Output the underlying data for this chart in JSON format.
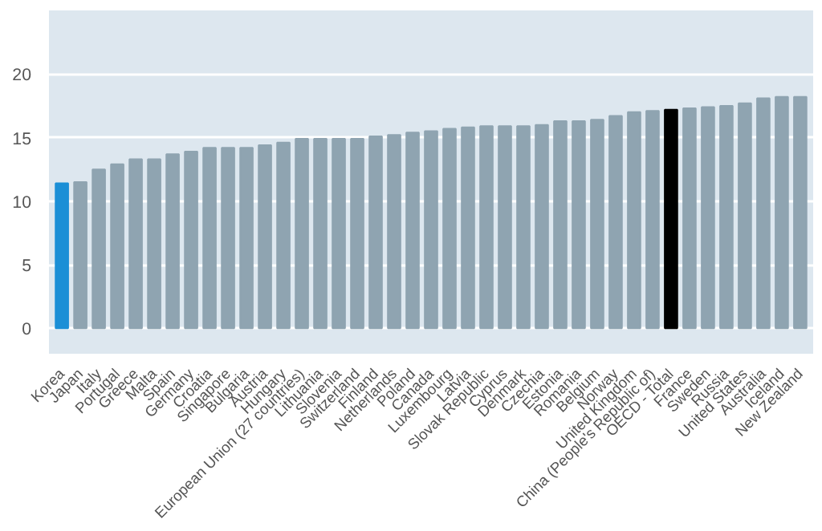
{
  "chart_data": {
    "type": "bar",
    "categories": [
      "Korea",
      "Japan",
      "Italy",
      "Portugal",
      "Greece",
      "Malta",
      "Spain",
      "Germany",
      "Croatia",
      "Singapore",
      "Bulgaria",
      "Austria",
      "Hungary",
      "European Union (27 countries)",
      "Lithuania",
      "Slovenia",
      "Switzerland",
      "Finland",
      "Netherlands",
      "Poland",
      "Canada",
      "Luxembourg",
      "Latvia",
      "Slovak Republic",
      "Cyprus",
      "Denmark",
      "Czechia",
      "Estonia",
      "Romania",
      "Belgium",
      "Norway",
      "United Kingdom",
      "China (People's Republic of)",
      "OECD - Total",
      "France",
      "Sweden",
      "Russia",
      "United States",
      "Australia",
      "Iceland",
      "New Zealand"
    ],
    "values": [
      11.4,
      11.5,
      12.5,
      12.9,
      13.3,
      13.3,
      13.7,
      13.9,
      14.2,
      14.2,
      14.2,
      14.4,
      14.6,
      14.9,
      14.9,
      14.9,
      14.9,
      15.1,
      15.2,
      15.4,
      15.5,
      15.7,
      15.8,
      15.9,
      15.9,
      15.9,
      16.0,
      16.3,
      16.3,
      16.4,
      16.7,
      17.0,
      17.1,
      17.2,
      17.3,
      17.4,
      17.5,
      17.7,
      18.1,
      18.2,
      18.2
    ],
    "colors": [
      "#1b8fd6",
      "#8fa4b1",
      "#8fa4b1",
      "#8fa4b1",
      "#8fa4b1",
      "#8fa4b1",
      "#8fa4b1",
      "#8fa4b1",
      "#8fa4b1",
      "#8fa4b1",
      "#8fa4b1",
      "#8fa4b1",
      "#8fa4b1",
      "#8fa4b1",
      "#8fa4b1",
      "#8fa4b1",
      "#8fa4b1",
      "#8fa4b1",
      "#8fa4b1",
      "#8fa4b1",
      "#8fa4b1",
      "#8fa4b1",
      "#8fa4b1",
      "#8fa4b1",
      "#8fa4b1",
      "#8fa4b1",
      "#8fa4b1",
      "#8fa4b1",
      "#8fa4b1",
      "#8fa4b1",
      "#8fa4b1",
      "#8fa4b1",
      "#8fa4b1",
      "#000000",
      "#8fa4b1",
      "#8fa4b1",
      "#8fa4b1",
      "#8fa4b1",
      "#8fa4b1",
      "#8fa4b1",
      "#8fa4b1"
    ],
    "ylim": [
      -2,
      25
    ],
    "yticks": [
      0,
      5,
      10,
      15,
      20
    ],
    "grid": "y"
  }
}
